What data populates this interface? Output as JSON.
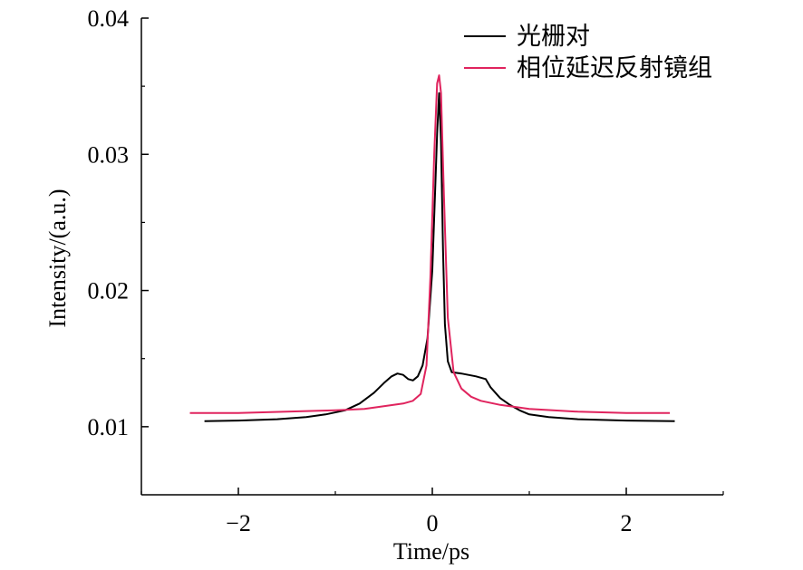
{
  "chart_data": {
    "type": "line",
    "title": "",
    "xlabel": "Time/ps",
    "ylabel": "Intensity/(a.u.)",
    "xlim": [
      -3.0,
      3.0
    ],
    "ylim": [
      0.005,
      0.04
    ],
    "xticks": [
      -2,
      0,
      2
    ],
    "xtick_labels": [
      "−2",
      "0",
      "2"
    ],
    "yticks": [
      0.01,
      0.02,
      0.03,
      0.04
    ],
    "ytick_labels": [
      "0.01",
      "0.02",
      "0.03",
      "0.04"
    ],
    "grid": false,
    "legend_position": "top-right",
    "series": [
      {
        "name": "光栅对",
        "color": "#000000",
        "x": [
          -2.35,
          -2.0,
          -1.6,
          -1.3,
          -1.1,
          -0.9,
          -0.75,
          -0.6,
          -0.5,
          -0.42,
          -0.36,
          -0.3,
          -0.25,
          -0.2,
          -0.15,
          -0.1,
          -0.05,
          0.0,
          0.03,
          0.05,
          0.07,
          0.09,
          0.11,
          0.13,
          0.16,
          0.2,
          0.3,
          0.45,
          0.55,
          0.6,
          0.7,
          0.8,
          0.9,
          1.0,
          1.2,
          1.5,
          2.0,
          2.5
        ],
        "y": [
          0.0104,
          0.01045,
          0.01055,
          0.0107,
          0.0109,
          0.0112,
          0.0117,
          0.0125,
          0.0132,
          0.0137,
          0.0139,
          0.0138,
          0.0135,
          0.0134,
          0.0137,
          0.0145,
          0.0165,
          0.0215,
          0.0275,
          0.0315,
          0.0345,
          0.031,
          0.023,
          0.0175,
          0.0148,
          0.014,
          0.0139,
          0.0137,
          0.0135,
          0.0129,
          0.0121,
          0.0116,
          0.0112,
          0.0109,
          0.0107,
          0.01055,
          0.01045,
          0.0104
        ]
      },
      {
        "name": "相位延迟反射镜组",
        "color": "#e0245e",
        "x": [
          -2.5,
          -2.0,
          -1.5,
          -1.0,
          -0.7,
          -0.5,
          -0.3,
          -0.2,
          -0.12,
          -0.06,
          -0.02,
          0.02,
          0.05,
          0.07,
          0.09,
          0.12,
          0.16,
          0.22,
          0.3,
          0.4,
          0.5,
          0.7,
          1.0,
          1.5,
          2.0,
          2.45
        ],
        "y": [
          0.011,
          0.011,
          0.0111,
          0.0112,
          0.0113,
          0.0115,
          0.0117,
          0.0119,
          0.0124,
          0.0145,
          0.021,
          0.03,
          0.0352,
          0.0358,
          0.0345,
          0.027,
          0.018,
          0.014,
          0.0128,
          0.0122,
          0.0119,
          0.0116,
          0.0113,
          0.0111,
          0.011,
          0.011
        ]
      }
    ]
  }
}
